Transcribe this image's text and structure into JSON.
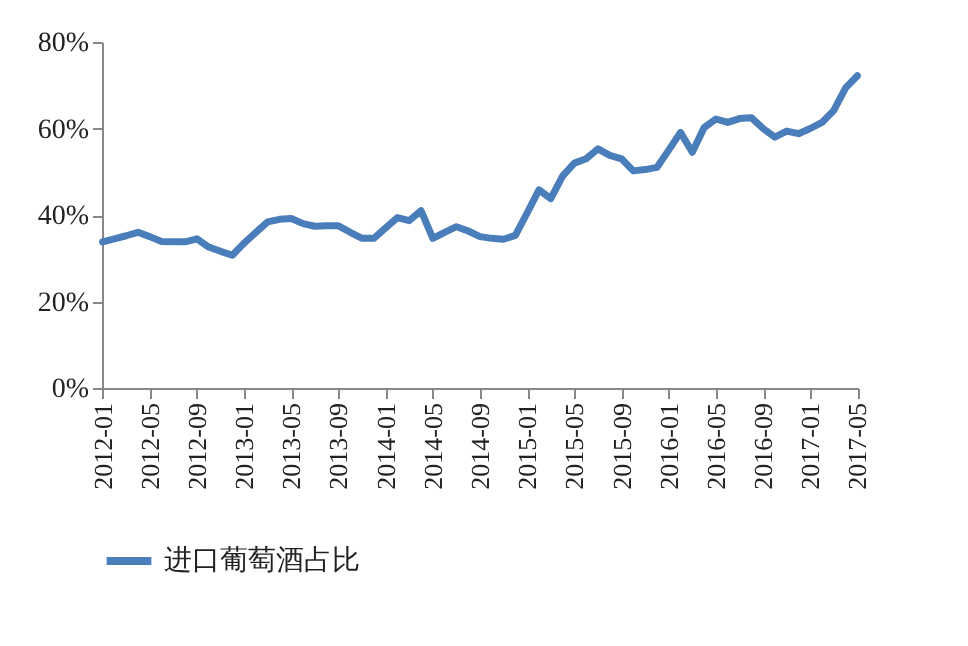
{
  "chart_data": {
    "type": "line",
    "categories": [
      "2012-01",
      null,
      null,
      null,
      "2012-05",
      null,
      null,
      null,
      "2012-09",
      null,
      null,
      null,
      "2013-01",
      null,
      null,
      null,
      "2013-05",
      null,
      null,
      null,
      "2013-09",
      null,
      null,
      null,
      "2014-01",
      null,
      null,
      null,
      "2014-05",
      null,
      null,
      null,
      "2014-09",
      null,
      null,
      null,
      "2015-01",
      null,
      null,
      null,
      "2015-05",
      null,
      null,
      null,
      "2015-09",
      null,
      null,
      null,
      "2016-01",
      null,
      null,
      null,
      "2016-05",
      null,
      null,
      null,
      "2016-09",
      null,
      null,
      null,
      "2017-01",
      null,
      null,
      null,
      "2017-05"
    ],
    "series": [
      {
        "name": "进口葡萄酒占比",
        "color": "#4a7ebb",
        "values": [
          33.8,
          34.5,
          35.2,
          36,
          35,
          33.9,
          33.8,
          33.8,
          34.5,
          32.6,
          31.6,
          30.7,
          33.5,
          36,
          38.4,
          39,
          39.2,
          38,
          37.4,
          37.5,
          37.5,
          36,
          34.6,
          34.6,
          37,
          39.4,
          38.7,
          41,
          34.6,
          36,
          37.3,
          36.3,
          35,
          34.6,
          34.4,
          35.3,
          40.5,
          45.8,
          43.8,
          49,
          52,
          53,
          55.3,
          53.8,
          53,
          50.2,
          50.5,
          51,
          55,
          59.1,
          54.5,
          60.2,
          62.2,
          61.4,
          62.3,
          62.5,
          60,
          58,
          59.4,
          58.8,
          60,
          61.4,
          64.2,
          69.4,
          72.2
        ]
      }
    ],
    "ylim": [
      0,
      80
    ],
    "yticks": [
      {
        "value": 0,
        "label": "0%"
      },
      {
        "value": 20,
        "label": "20%"
      },
      {
        "value": 40,
        "label": "40%"
      },
      {
        "value": 60,
        "label": "60%"
      },
      {
        "value": 80,
        "label": "80%"
      }
    ],
    "legend": "bottom",
    "grid": false,
    "marker": "none",
    "line_style": "solid"
  }
}
